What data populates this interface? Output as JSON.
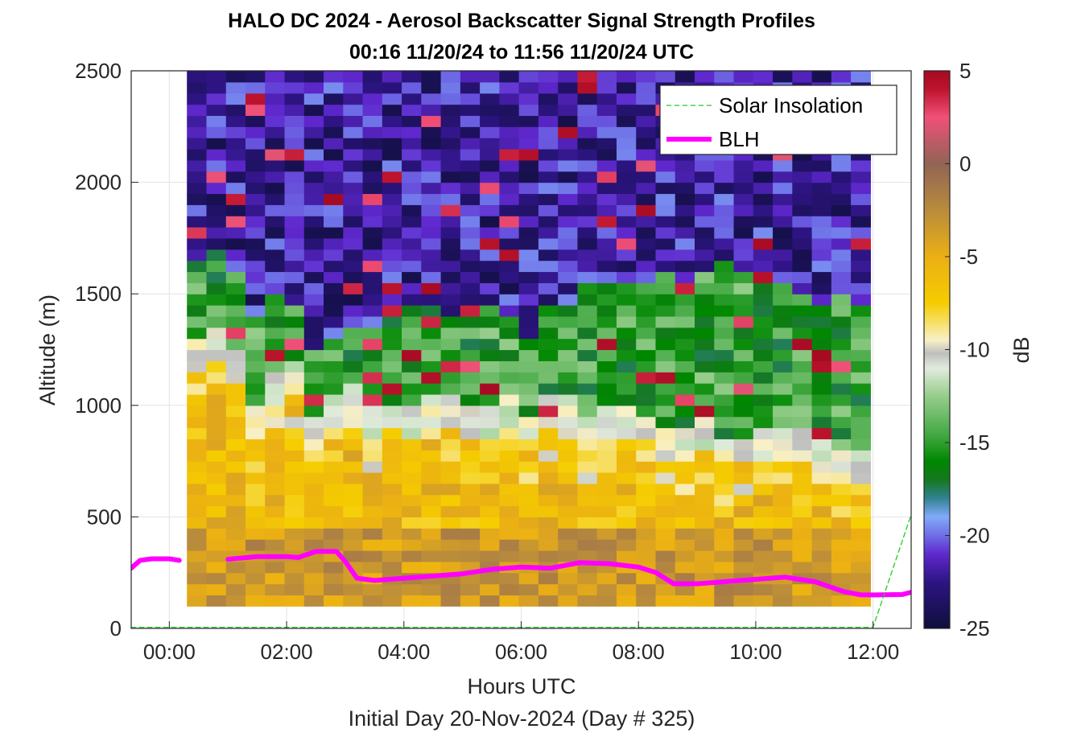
{
  "chart_data": {
    "type": "heatmap",
    "title": "HALO DC 2024 - Aerosol Backscatter Signal Strength Profiles",
    "subtitle": "00:16 11/20/24 to 11:56 11/20/24  UTC",
    "xlabel": "Hours UTC",
    "ylabel": "Altitude (m)",
    "footer": "Initial Day 20-Nov-2024 (Day # 325)",
    "xlim": [
      -0.65,
      12.65
    ],
    "ylim": [
      0,
      2500
    ],
    "xticks": [
      0,
      2,
      4,
      6,
      8,
      10,
      12
    ],
    "xtick_labels": [
      "00:00",
      "02:00",
      "04:00",
      "06:00",
      "08:00",
      "10:00",
      "12:00"
    ],
    "yticks": [
      0,
      500,
      1000,
      1500,
      2000,
      2500
    ],
    "ytick_labels": [
      "0",
      "500",
      "1000",
      "1500",
      "2000",
      "2500"
    ],
    "grid": true,
    "colorbar": {
      "label": "dB",
      "range": [
        -25,
        5
      ],
      "ticks": [
        5,
        0,
        -5,
        -10,
        -15,
        -20,
        -25
      ],
      "tick_labels": [
        "5",
        "0",
        "-5",
        "-10",
        "-15",
        "-20",
        "-25"
      ]
    },
    "heatmap": {
      "x_start": 0.3,
      "x_end": 11.95,
      "x_step": 0.333,
      "y_start": 100,
      "y_end": 2500,
      "y_step": 50,
      "layer_profile": {
        "hours": [
          0.3,
          1.0,
          1.5,
          2.0,
          2.5,
          3.0,
          3.5,
          4.0,
          5.0,
          6.0,
          7.0,
          8.0,
          9.0,
          10.0,
          11.0,
          11.95
        ],
        "aerosol_top_m": [
          1300,
          1300,
          900,
          1200,
          900,
          1000,
          1000,
          950,
          950,
          950,
          950,
          900,
          850,
          850,
          800,
          700
        ],
        "cloud_top_m": [
          1550,
          1700,
          1450,
          1600,
          1200,
          1400,
          1400,
          1450,
          1400,
          1350,
          1450,
          1550,
          1600,
          1600,
          1500,
          1450
        ]
      }
    },
    "legend": {
      "position": "top-right",
      "entries": [
        "Solar Insolation",
        "BLH"
      ]
    },
    "series": [
      {
        "name": "BLH",
        "color": "#ff00ff",
        "x": [
          -0.65,
          -0.5,
          -0.3,
          0.0,
          0.17,
          0.5,
          1.0,
          1.5,
          2.0,
          2.2,
          2.5,
          2.85,
          3.0,
          3.2,
          3.5,
          4.0,
          4.5,
          5.0,
          5.5,
          6.0,
          6.5,
          7.0,
          7.5,
          8.0,
          8.3,
          8.6,
          9.0,
          9.5,
          10.0,
          10.5,
          11.0,
          11.5,
          11.8,
          12.0,
          12.5,
          12.65
        ],
        "y": [
          270,
          305,
          312,
          312,
          305,
          null,
          310,
          322,
          322,
          318,
          345,
          345,
          300,
          225,
          215,
          225,
          235,
          245,
          265,
          275,
          270,
          295,
          290,
          275,
          250,
          200,
          200,
          210,
          220,
          230,
          210,
          165,
          150,
          150,
          152,
          162
        ]
      },
      {
        "name": "Solar Insolation",
        "color": "#22cc22",
        "style": "dashed",
        "x": [
          -0.65,
          12.0,
          12.65
        ],
        "y": [
          5,
          5,
          510
        ]
      }
    ]
  }
}
